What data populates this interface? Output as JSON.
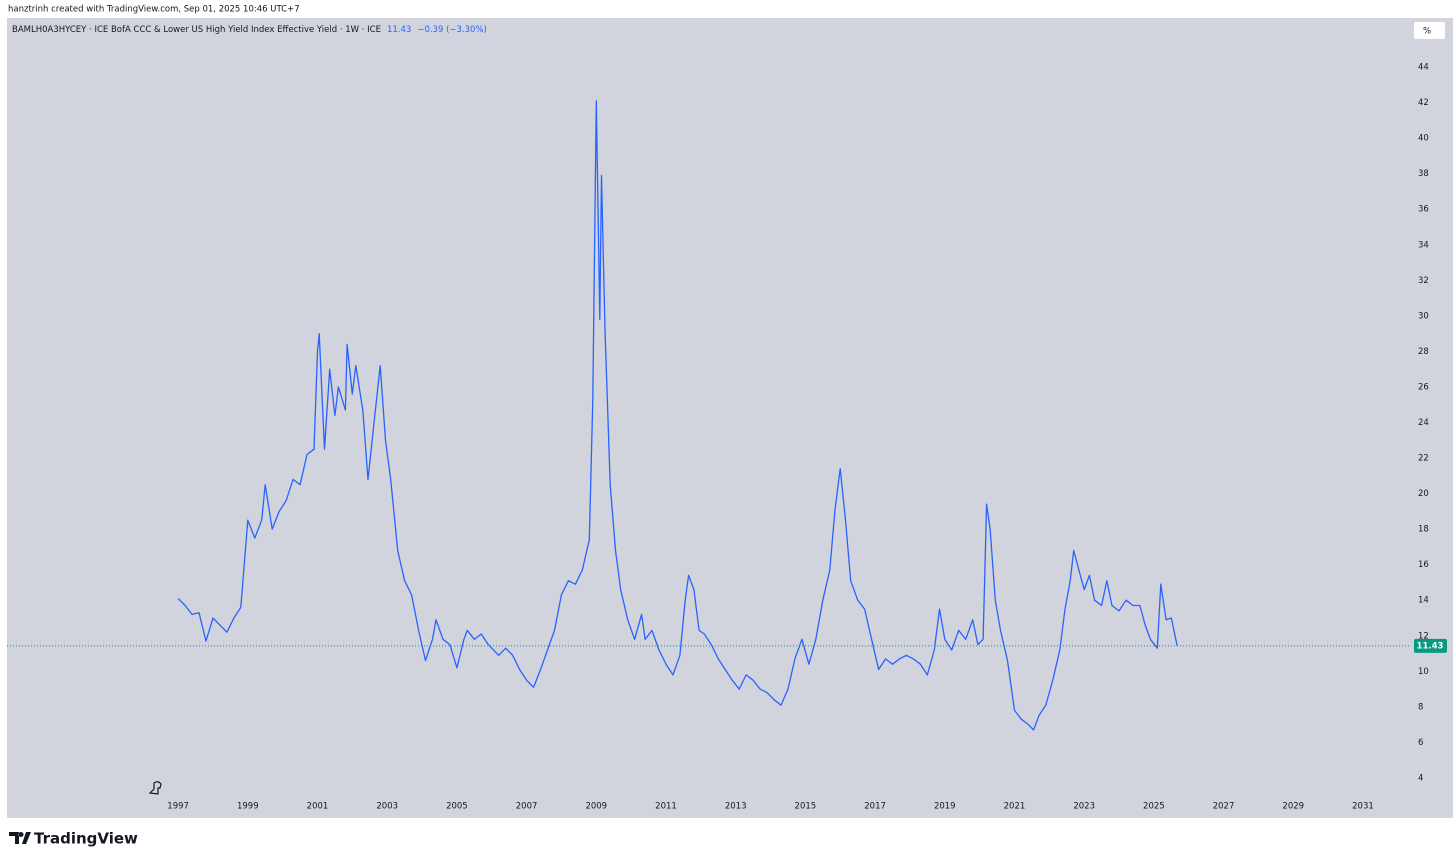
{
  "header": "hanztrinh created with TradingView.com, Sep 01, 2025 10:46 UTC+7",
  "brand": "TradingView",
  "chart_data": {
    "type": "line",
    "symbol": "BAMLH0A3HYCEY · ICE BofA CCC & Lower US High Yield Index Effective Yield · 1W · ICE",
    "change": "−0.39 (−3.30%)",
    "scale_button": "%",
    "last_price": 11.43,
    "background": "#d1d4dc",
    "price_line_color": "#089981",
    "xlim": [
      1992.09,
      2032.35
    ],
    "xticks": [
      1997,
      1999,
      2001,
      2003,
      2005,
      2007,
      2009,
      2011,
      2013,
      2015,
      2017,
      2019,
      2021,
      2023,
      2025,
      2027,
      2029,
      2031
    ],
    "ylim": [
      3.04,
      46.76
    ],
    "yticks": [
      4,
      6,
      8,
      10,
      12,
      14,
      16,
      18,
      20,
      22,
      24,
      26,
      28,
      30,
      32,
      34,
      36,
      38,
      40,
      42,
      44
    ],
    "x": [
      1997.0,
      1997.2,
      1997.4,
      1997.6,
      1997.8,
      1998.0,
      1998.2,
      1998.4,
      1998.6,
      1998.8,
      1999.0,
      1999.2,
      1999.4,
      1999.5,
      1999.7,
      1999.9,
      2000.1,
      2000.3,
      2000.5,
      2000.7,
      2000.9,
      2001.0,
      2001.05,
      2001.2,
      2001.35,
      2001.5,
      2001.6,
      2001.8,
      2001.85,
      2002.0,
      2002.1,
      2002.3,
      2002.45,
      2002.6,
      2002.8,
      2002.95,
      2003.1,
      2003.3,
      2003.5,
      2003.7,
      2003.9,
      2004.1,
      2004.3,
      2004.4,
      2004.6,
      2004.8,
      2005.0,
      2005.2,
      2005.3,
      2005.5,
      2005.7,
      2005.9,
      2006.2,
      2006.4,
      2006.6,
      2006.8,
      2007.0,
      2007.2,
      2007.4,
      2007.6,
      2007.8,
      2008.0,
      2008.2,
      2008.4,
      2008.6,
      2008.8,
      2008.9,
      2009.0,
      2009.1,
      2009.15,
      2009.25,
      2009.4,
      2009.55,
      2009.7,
      2009.9,
      2010.1,
      2010.3,
      2010.4,
      2010.6,
      2010.8,
      2011.0,
      2011.2,
      2011.4,
      2011.55,
      2011.65,
      2011.8,
      2011.95,
      2012.1,
      2012.3,
      2012.5,
      2012.7,
      2012.9,
      2013.1,
      2013.3,
      2013.5,
      2013.7,
      2013.9,
      2014.1,
      2014.3,
      2014.5,
      2014.7,
      2014.9,
      2015.1,
      2015.3,
      2015.5,
      2015.7,
      2015.85,
      2016.0,
      2016.15,
      2016.3,
      2016.5,
      2016.7,
      2016.9,
      2017.1,
      2017.3,
      2017.5,
      2017.7,
      2017.9,
      2018.1,
      2018.3,
      2018.5,
      2018.7,
      2018.85,
      2019.0,
      2019.2,
      2019.4,
      2019.6,
      2019.8,
      2019.95,
      2020.1,
      2020.2,
      2020.3,
      2020.45,
      2020.6,
      2020.8,
      2021.0,
      2021.2,
      2021.4,
      2021.55,
      2021.7,
      2021.9,
      2022.1,
      2022.3,
      2022.45,
      2022.6,
      2022.7,
      2022.85,
      2023.0,
      2023.15,
      2023.3,
      2023.5,
      2023.65,
      2023.8,
      2024.0,
      2024.2,
      2024.4,
      2024.6,
      2024.75,
      2024.9,
      2025.1,
      2025.2,
      2025.35,
      2025.5,
      2025.67
    ],
    "series": [
      {
        "color": "#2962ff",
        "values": [
          14.1,
          13.7,
          13.2,
          13.3,
          11.7,
          13.0,
          12.6,
          12.2,
          13.0,
          13.6,
          18.5,
          17.5,
          18.5,
          20.5,
          18.0,
          19.0,
          19.6,
          20.8,
          20.5,
          22.2,
          22.5,
          28.0,
          29.0,
          22.5,
          27.0,
          24.4,
          26.0,
          24.7,
          28.4,
          25.6,
          27.2,
          24.7,
          20.8,
          23.6,
          27.2,
          23.0,
          20.8,
          16.8,
          15.1,
          14.3,
          12.3,
          10.6,
          11.8,
          12.9,
          11.8,
          11.5,
          10.2,
          11.8,
          12.3,
          11.8,
          12.1,
          11.5,
          10.9,
          11.3,
          10.9,
          10.1,
          9.5,
          9.1,
          10.1,
          11.2,
          12.3,
          14.3,
          15.1,
          14.9,
          15.7,
          17.4,
          25.3,
          42.1,
          29.8,
          37.9,
          29.2,
          20.5,
          16.8,
          14.6,
          12.9,
          11.8,
          13.2,
          11.8,
          12.3,
          11.2,
          10.4,
          9.8,
          10.9,
          14.0,
          15.4,
          14.6,
          12.3,
          12.1,
          11.5,
          10.7,
          10.1,
          9.5,
          9.0,
          9.8,
          9.5,
          9.0,
          8.8,
          8.4,
          8.1,
          9.0,
          10.7,
          11.8,
          10.4,
          11.8,
          14.0,
          15.7,
          19.1,
          21.4,
          18.5,
          15.1,
          14.0,
          13.5,
          11.8,
          10.1,
          10.7,
          10.4,
          10.7,
          10.9,
          10.7,
          10.4,
          9.8,
          11.2,
          13.5,
          11.8,
          11.2,
          12.3,
          11.8,
          12.9,
          11.5,
          11.8,
          19.4,
          18.0,
          14.0,
          12.3,
          10.6,
          7.8,
          7.3,
          7.0,
          6.7,
          7.5,
          8.1,
          9.5,
          11.2,
          13.5,
          15.1,
          16.8,
          15.7,
          14.6,
          15.4,
          14.0,
          13.7,
          15.1,
          13.7,
          13.4,
          14.0,
          13.7,
          13.7,
          12.6,
          11.8,
          11.3,
          14.9,
          12.9,
          13.0,
          11.43
        ]
      }
    ]
  }
}
